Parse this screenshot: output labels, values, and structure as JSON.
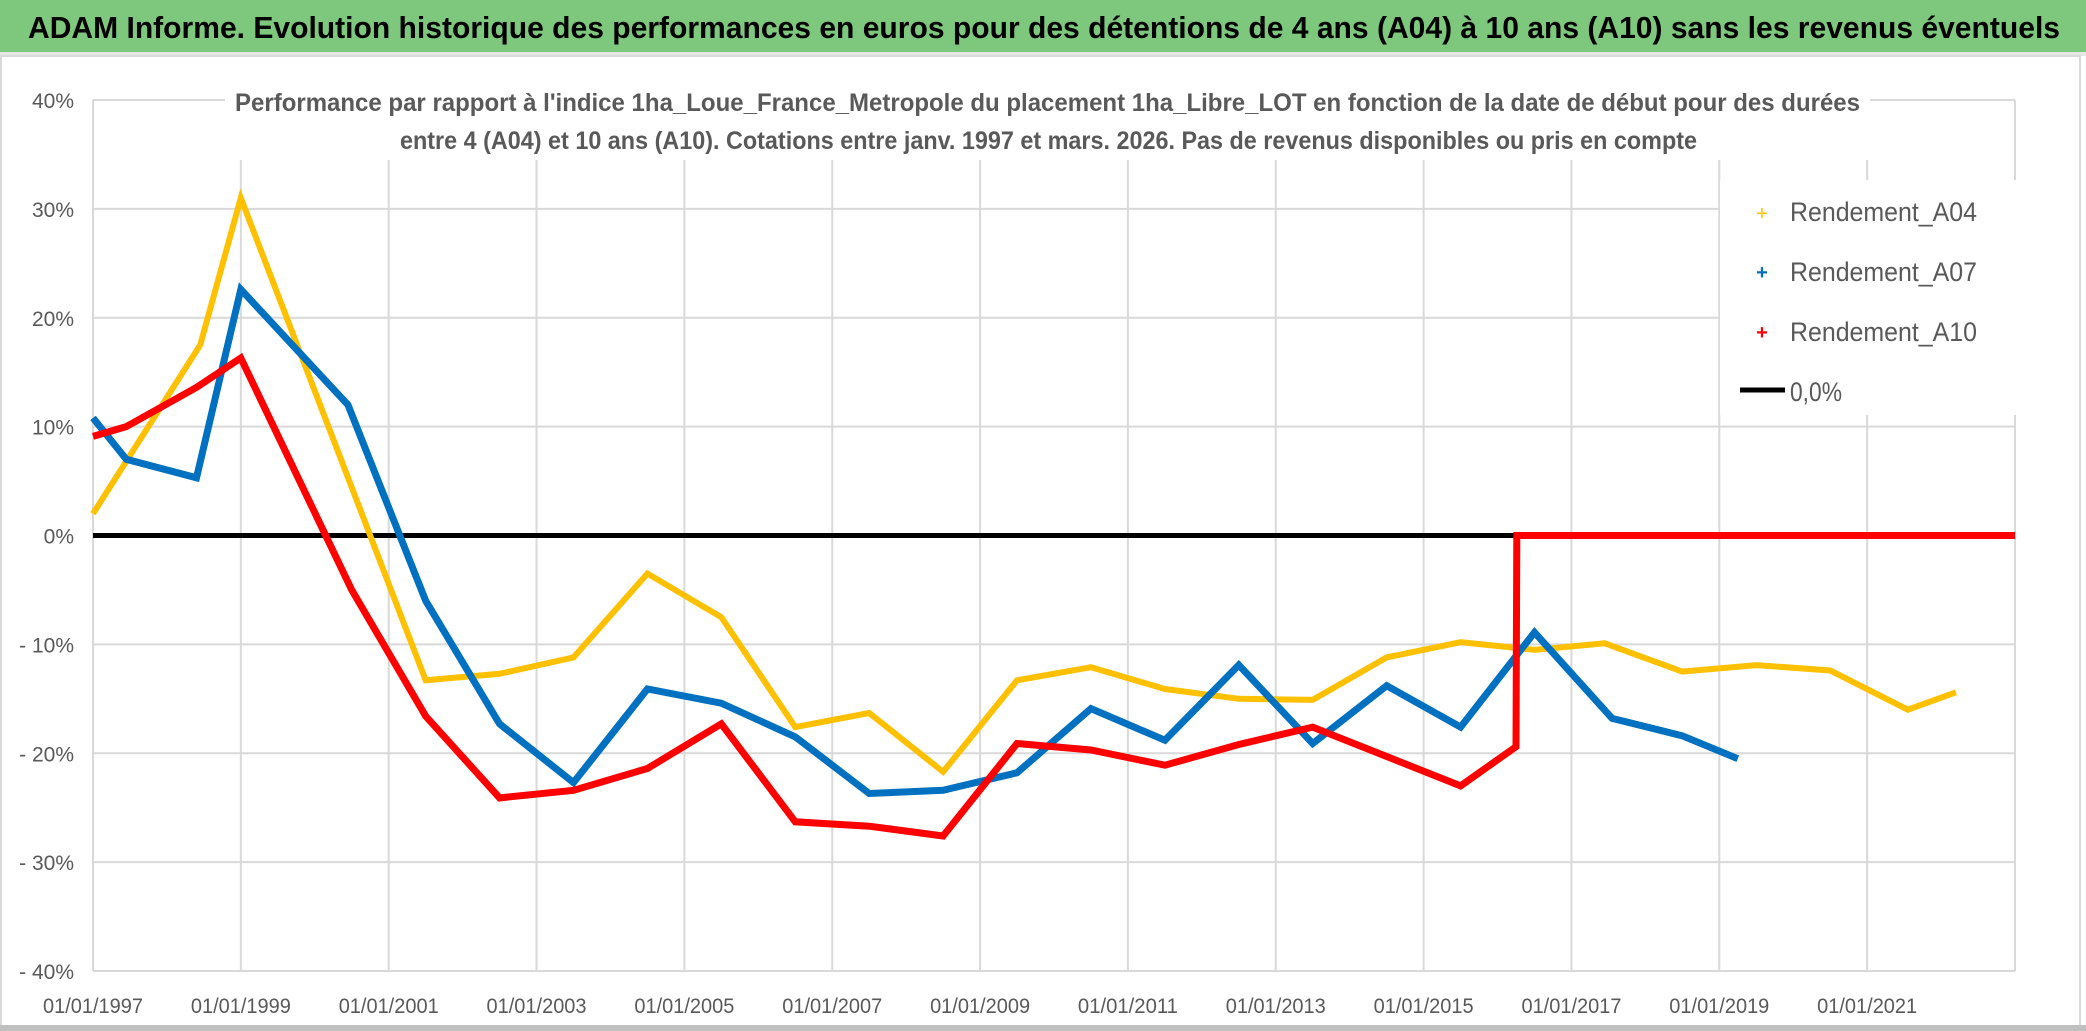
{
  "header": {
    "title": "ADAM Informe. Evolution historique des performances en euros pour des détentions de 4 ans (A04) à 10 ans (A10) sans les revenus éventuels",
    "background_color": "#7dc87d"
  },
  "chart_data": {
    "type": "line",
    "title_lines": [
      "Performance par rapport à l'indice 1ha_Loue_France_Metropole  du placement 1ha_Libre_LOT en fonction de la date de début pour des durées",
      "entre 4 (A04) et 10 ans (A10). Cotations entre janv. 1997 et mars. 2026. Pas de revenus disponibles ou pris en compte"
    ],
    "xlabel": "",
    "ylabel": "",
    "xlim": [
      "1997-01-01",
      "2023-01-01"
    ],
    "ylim": [
      -40,
      40
    ],
    "grid": true,
    "legend_position": "right",
    "x_ticks": [
      "01/01/1997",
      "01/01/1999",
      "01/01/2001",
      "01/01/2003",
      "01/01/2005",
      "01/01/2007",
      "01/01/2009",
      "01/01/2011",
      "01/01/2013",
      "01/01/2015",
      "01/01/2017",
      "01/01/2019",
      "01/01/2021"
    ],
    "y_ticks": [
      "40%",
      "30%",
      "20%",
      "10%",
      "0%",
      "- 10%",
      "- 20%",
      "- 30%",
      "- 40%"
    ],
    "y_tick_values": [
      40,
      30,
      20,
      10,
      0,
      -10,
      -20,
      -30,
      -40
    ],
    "x_tick_years": [
      1997,
      1999,
      2001,
      2003,
      2005,
      2007,
      2009,
      2011,
      2013,
      2015,
      2017,
      2019,
      2021
    ],
    "series": [
      {
        "name": "Rendement_A04",
        "color": "#ffc000",
        "marker": "plus",
        "x": [
          1997.0,
          1998.45,
          1999.0,
          2001.5,
          2002.5,
          2003.5,
          2004.5,
          2005.5,
          2006.5,
          2007.5,
          2008.5,
          2009.5,
          2010.5,
          2011.5,
          2012.5,
          2013.5,
          2014.5,
          2015.5,
          2016.5,
          2017.45,
          2018.5,
          2019.5,
          2020.5,
          2021.55,
          2022.2
        ],
        "y": [
          2.0,
          17.5,
          31.0,
          -13.3,
          -12.7,
          -11.2,
          -3.5,
          -7.5,
          -17.6,
          -16.3,
          -21.7,
          -13.3,
          -12.1,
          -14.1,
          -15.0,
          -15.1,
          -11.2,
          -9.8,
          -10.5,
          -9.9,
          -12.5,
          -11.9,
          -12.4,
          -16.0,
          -14.4
        ]
      },
      {
        "name": "Rendement_A07",
        "color": "#0070c0",
        "marker": "plus",
        "x": [
          1997.0,
          1997.45,
          1998.4,
          1999.0,
          2000.45,
          2001.5,
          2002.5,
          2003.5,
          2004.5,
          2005.5,
          2006.5,
          2007.5,
          2008.5,
          2009.5,
          2010.5,
          2011.5,
          2012.5,
          2013.5,
          2014.5,
          2015.5,
          2016.5,
          2017.55,
          2018.5,
          2019.25
        ],
        "y": [
          10.8,
          7.0,
          5.3,
          22.6,
          12.0,
          -6.0,
          -17.3,
          -22.7,
          -14.1,
          -15.4,
          -18.5,
          -23.7,
          -23.4,
          -21.8,
          -15.9,
          -18.8,
          -11.9,
          -19.1,
          -13.8,
          -17.6,
          -8.9,
          -16.8,
          -18.4,
          -20.5
        ]
      },
      {
        "name": "Rendement_A10",
        "color": "#ff0000",
        "marker": "plus",
        "x": [
          1997.0,
          1997.45,
          1998.4,
          1999.0,
          2000.5,
          2001.5,
          2002.5,
          2003.5,
          2004.5,
          2005.5,
          2006.5,
          2007.5,
          2008.5,
          2009.5,
          2010.5,
          2011.5,
          2012.5,
          2013.5,
          2014.5,
          2015.5,
          2016.25,
          2016.26,
          2023.0
        ],
        "y": [
          9.1,
          10.0,
          13.6,
          16.3,
          -5.0,
          -16.6,
          -24.1,
          -23.4,
          -21.4,
          -17.3,
          -26.3,
          -26.7,
          -27.6,
          -19.1,
          -19.7,
          -21.1,
          -19.2,
          -17.6,
          -20.3,
          -23.0,
          -19.4,
          0.0,
          0.0
        ]
      },
      {
        "name": "0,0%",
        "color": "#000000",
        "marker": "none",
        "x": [
          1997.0,
          2023.0
        ],
        "y": [
          0,
          0
        ]
      }
    ]
  }
}
